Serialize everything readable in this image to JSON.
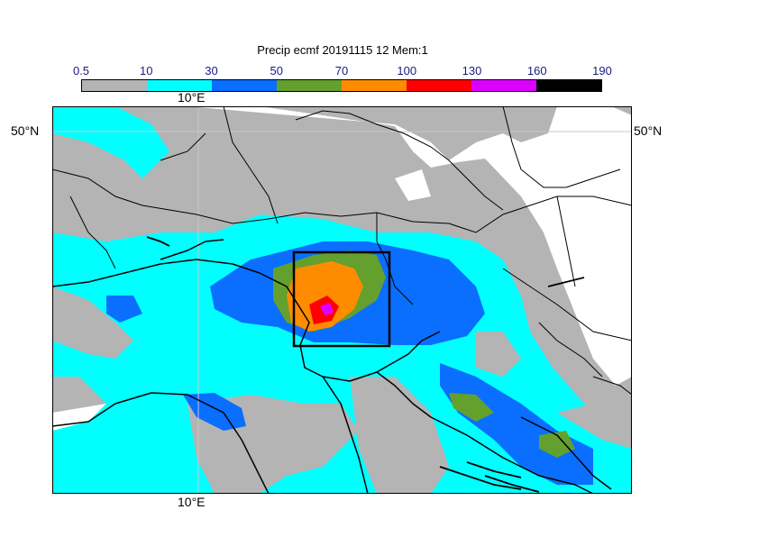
{
  "title": "Precip ecmf 20191115 12 Mem:1",
  "colorbar": {
    "ticks": [
      "0.5",
      "10",
      "30",
      "50",
      "70",
      "100",
      "130",
      "160",
      "190"
    ],
    "colors": [
      "#b4b4b4",
      "#00ffff",
      "#0a6eff",
      "#64a02d",
      "#ff8c00",
      "#ff0000",
      "#dc00ff",
      "#000000"
    ]
  },
  "axis_labels": {
    "top_lon": "10°E",
    "bottom_lon": "10°E",
    "left_lat": "50°N",
    "right_lat": "50°N"
  },
  "colors": {
    "background": "#ffffff",
    "land_blank": "#ffffff",
    "coast": "#000000",
    "border": "#000000",
    "grid": "#c8c8c8"
  }
}
